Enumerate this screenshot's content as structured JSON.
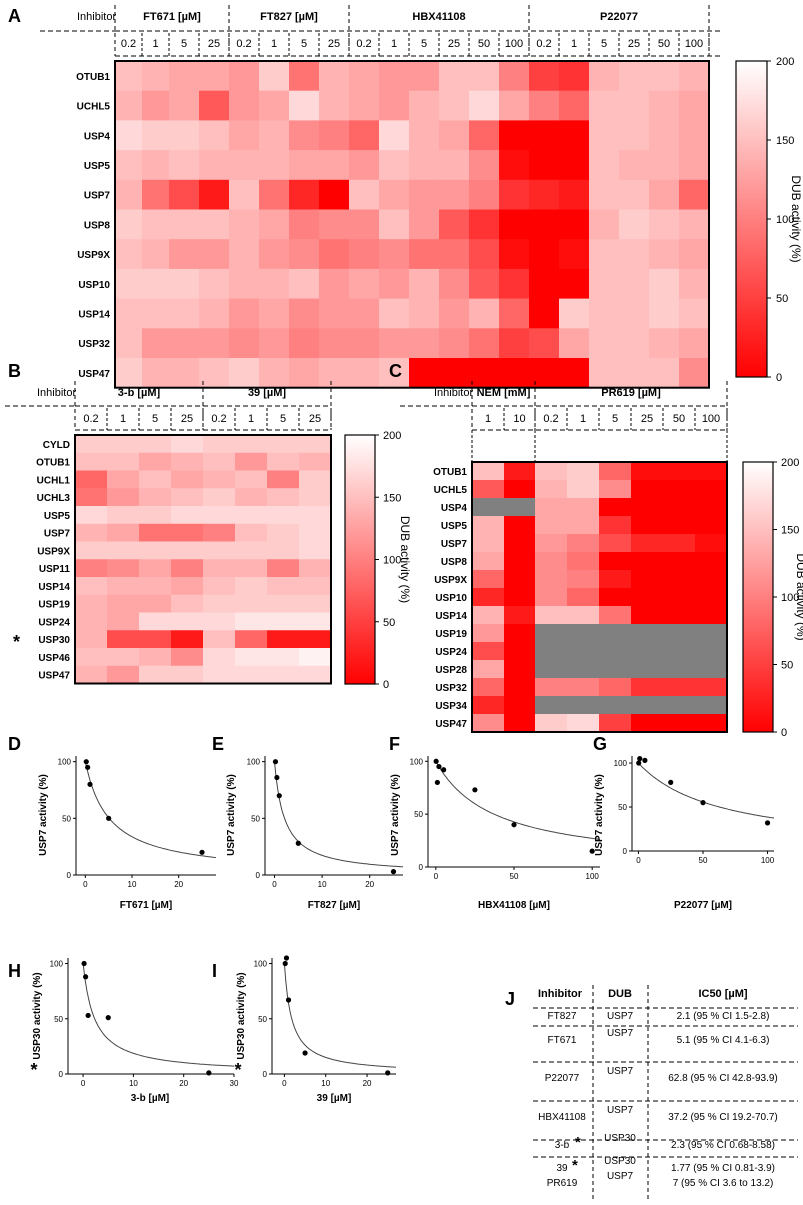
{
  "figure": {
    "title": "DUB inhibitor profiling figure"
  },
  "colorbar": {
    "label": "DUB activity (%)",
    "ticks": [
      0,
      50,
      100,
      150,
      200
    ]
  },
  "chart_data": [
    {
      "id": "A",
      "type": "heatmap",
      "panel": "A",
      "header_label": "Inhibitor",
      "groups": [
        {
          "name": "FT671 [µM]",
          "conc": [
            "0.2",
            "1",
            "5",
            "25"
          ]
        },
        {
          "name": "FT827 [µM]",
          "conc": [
            "0.2",
            "1",
            "5",
            "25"
          ]
        },
        {
          "name": "HBX41108",
          "conc": [
            "0.2",
            "1",
            "5",
            "25",
            "50",
            "100"
          ]
        },
        {
          "name": "P22077",
          "conc": [
            "0.2",
            "1",
            "5",
            "25",
            "50",
            "100"
          ]
        }
      ],
      "rows": [
        "OTUB1",
        "UCHL5",
        "USP4",
        "USP5",
        "USP7",
        "USP8",
        "USP9X",
        "USP10",
        "USP14",
        "USP32",
        "USP47"
      ],
      "values": [
        [
          150,
          140,
          130,
          130,
          120,
          160,
          90,
          140,
          130,
          120,
          120,
          150,
          150,
          100,
          50,
          40,
          140,
          150,
          150,
          140,
          130,
          160
        ],
        [
          140,
          120,
          130,
          70,
          120,
          130,
          170,
          140,
          130,
          120,
          140,
          150,
          170,
          130,
          100,
          80,
          150,
          150,
          140,
          130,
          120,
          130
        ],
        [
          170,
          160,
          160,
          150,
          130,
          140,
          110,
          100,
          80,
          170,
          140,
          130,
          80,
          0,
          0,
          0,
          150,
          150,
          140,
          130,
          130,
          130
        ],
        [
          150,
          140,
          150,
          140,
          140,
          140,
          130,
          130,
          120,
          150,
          140,
          140,
          110,
          10,
          0,
          0,
          150,
          140,
          140,
          130,
          130,
          130
        ],
        [
          140,
          90,
          60,
          20,
          150,
          90,
          30,
          0,
          150,
          130,
          120,
          120,
          100,
          40,
          30,
          20,
          150,
          150,
          130,
          80,
          50,
          30
        ],
        [
          160,
          150,
          150,
          150,
          140,
          130,
          100,
          110,
          110,
          150,
          120,
          70,
          40,
          0,
          0,
          0,
          140,
          160,
          150,
          140,
          140,
          130
        ],
        [
          150,
          140,
          120,
          120,
          140,
          120,
          110,
          90,
          100,
          110,
          90,
          90,
          60,
          10,
          0,
          10,
          150,
          150,
          140,
          130,
          130,
          120
        ],
        [
          160,
          160,
          160,
          150,
          140,
          140,
          150,
          120,
          130,
          120,
          140,
          110,
          70,
          40,
          0,
          0,
          150,
          150,
          160,
          140,
          140,
          130
        ],
        [
          150,
          150,
          150,
          140,
          120,
          130,
          110,
          120,
          120,
          150,
          140,
          120,
          140,
          80,
          0,
          160,
          150,
          150,
          160,
          150,
          140,
          130
        ],
        [
          150,
          120,
          120,
          120,
          110,
          120,
          100,
          110,
          110,
          120,
          120,
          110,
          90,
          50,
          60,
          130,
          150,
          150,
          140,
          130,
          110,
          100
        ],
        [
          160,
          140,
          140,
          150,
          160,
          140,
          130,
          140,
          140,
          150,
          0,
          0,
          0,
          0,
          0,
          0,
          150,
          150,
          150,
          110,
          80,
          0
        ]
      ]
    },
    {
      "id": "B",
      "type": "heatmap",
      "panel": "B",
      "header_label": "Inhibitor",
      "groups": [
        {
          "name": "3-b [µM]",
          "conc": [
            "0.2",
            "1",
            "5",
            "25"
          ]
        },
        {
          "name": "39 [µM]",
          "conc": [
            "0.2",
            "1",
            "5",
            "25"
          ]
        }
      ],
      "rows": [
        "CYLD",
        "OTUB1",
        "UCHL1",
        "UCHL3",
        "USP5",
        "USP7",
        "USP9X",
        "USP11",
        "USP14",
        "USP19",
        "USP24",
        "USP30",
        "USP46",
        "USP47"
      ],
      "marked_rows": [
        "USP30"
      ],
      "values": [
        [
          160,
          160,
          160,
          170,
          160,
          160,
          160,
          160
        ],
        [
          150,
          150,
          130,
          140,
          150,
          120,
          150,
          140
        ],
        [
          80,
          130,
          150,
          130,
          140,
          150,
          100,
          160
        ],
        [
          90,
          120,
          140,
          150,
          160,
          140,
          150,
          160
        ],
        [
          170,
          160,
          160,
          170,
          170,
          170,
          170,
          170
        ],
        [
          140,
          130,
          90,
          90,
          100,
          150,
          160,
          170
        ],
        [
          160,
          160,
          160,
          160,
          160,
          160,
          160,
          170
        ],
        [
          100,
          110,
          130,
          100,
          140,
          140,
          100,
          140
        ],
        [
          150,
          140,
          140,
          130,
          150,
          160,
          150,
          150
        ],
        [
          140,
          130,
          130,
          150,
          160,
          160,
          160,
          160
        ],
        [
          140,
          130,
          170,
          170,
          170,
          180,
          180,
          180
        ],
        [
          140,
          60,
          60,
          20,
          150,
          80,
          20,
          20
        ],
        [
          150,
          150,
          140,
          110,
          170,
          180,
          180,
          190
        ],
        [
          140,
          120,
          160,
          160,
          170,
          170,
          170,
          170
        ]
      ]
    },
    {
      "id": "C",
      "type": "heatmap",
      "panel": "C",
      "header_label": "Inhibitor",
      "groups": [
        {
          "name": "NEM [mM]",
          "conc": [
            "1",
            "10"
          ]
        },
        {
          "name": "PR619 [µM]",
          "conc": [
            "0.2",
            "1",
            "5",
            "25",
            "50",
            "100"
          ]
        }
      ],
      "rows": [
        "OTUB1",
        "UCHL5",
        "USP4",
        "USP5",
        "USP7",
        "USP8",
        "USP9X",
        "USP10",
        "USP14",
        "USP19",
        "USP24",
        "USP28",
        "USP32",
        "USP34",
        "USP47"
      ],
      "values": [
        [
          150,
          20,
          150,
          160,
          80,
          10,
          10,
          10
        ],
        [
          70,
          0,
          140,
          160,
          110,
          0,
          0,
          0
        ],
        [
          null,
          null,
          130,
          130,
          0,
          0,
          0,
          0
        ],
        [
          140,
          0,
          130,
          130,
          40,
          0,
          0,
          0
        ],
        [
          140,
          0,
          120,
          100,
          60,
          30,
          30,
          10
        ],
        [
          130,
          0,
          110,
          90,
          0,
          0,
          0,
          0
        ],
        [
          80,
          0,
          110,
          100,
          20,
          0,
          0,
          0
        ],
        [
          30,
          0,
          110,
          80,
          0,
          0,
          0,
          0
        ],
        [
          140,
          20,
          150,
          150,
          90,
          0,
          0,
          0
        ],
        [
          120,
          0,
          null,
          null,
          null,
          null,
          null,
          null
        ],
        [
          60,
          0,
          null,
          null,
          null,
          null,
          null,
          null
        ],
        [
          130,
          0,
          null,
          null,
          null,
          null,
          null,
          null
        ],
        [
          80,
          0,
          100,
          100,
          80,
          40,
          40,
          40
        ],
        [
          30,
          0,
          null,
          null,
          null,
          null,
          null,
          null
        ],
        [
          110,
          0,
          160,
          170,
          50,
          0,
          0,
          0
        ]
      ]
    },
    {
      "id": "D",
      "type": "scatter",
      "panel": "D",
      "xlabel": "FT671 [µM]",
      "ylabel": "USP7 activity (%)",
      "x_ticks": [
        0,
        10,
        20
      ],
      "y_ticks": [
        0,
        50,
        100
      ],
      "xlim": [
        -2,
        28
      ],
      "ylim": [
        0,
        105
      ],
      "ic50": 5.1,
      "points": [
        {
          "x": 0.2,
          "y": 100
        },
        {
          "x": 0.5,
          "y": 95
        },
        {
          "x": 1,
          "y": 80
        },
        {
          "x": 5,
          "y": 50
        },
        {
          "x": 25,
          "y": 20
        }
      ]
    },
    {
      "id": "E",
      "type": "scatter",
      "panel": "E",
      "xlabel": "FT827 [µM]",
      "ylabel": "USP7 activity (%)",
      "x_ticks": [
        0,
        10,
        20
      ],
      "y_ticks": [
        0,
        50,
        100
      ],
      "xlim": [
        -2,
        27
      ],
      "ylim": [
        0,
        105
      ],
      "ic50": 2.1,
      "points": [
        {
          "x": 0.2,
          "y": 100
        },
        {
          "x": 0.5,
          "y": 86
        },
        {
          "x": 1,
          "y": 70
        },
        {
          "x": 5,
          "y": 28
        },
        {
          "x": 25,
          "y": 3
        }
      ]
    },
    {
      "id": "F",
      "type": "scatter",
      "panel": "F",
      "xlabel": "HBX41108 [µM]",
      "ylabel": "USP7 activity (%)",
      "x_ticks": [
        0,
        50,
        100
      ],
      "y_ticks": [
        0,
        50,
        100
      ],
      "xlim": [
        -5,
        105
      ],
      "ylim": [
        0,
        105
      ],
      "ic50": 37.2,
      "points": [
        {
          "x": 0.2,
          "y": 100
        },
        {
          "x": 1,
          "y": 80
        },
        {
          "x": 2,
          "y": 95
        },
        {
          "x": 5,
          "y": 92
        },
        {
          "x": 25,
          "y": 73
        },
        {
          "x": 50,
          "y": 40
        },
        {
          "x": 100,
          "y": 15
        }
      ]
    },
    {
      "id": "G",
      "type": "scatter",
      "panel": "G",
      "xlabel": "P22077 [µM]",
      "ylabel": "USP7 activity (%)",
      "x_ticks": [
        0,
        50,
        100
      ],
      "y_ticks": [
        0,
        50,
        100
      ],
      "xlim": [
        -5,
        105
      ],
      "ylim": [
        0,
        108
      ],
      "ic50": 62.8,
      "points": [
        {
          "x": 0.2,
          "y": 100
        },
        {
          "x": 1,
          "y": 105
        },
        {
          "x": 5,
          "y": 103
        },
        {
          "x": 25,
          "y": 78
        },
        {
          "x": 50,
          "y": 55
        },
        {
          "x": 100,
          "y": 32
        }
      ]
    },
    {
      "id": "H",
      "type": "scatter",
      "panel": "H",
      "xlabel": "3-b [µM]",
      "ylabel": "USP30 activity (%)",
      "x_ticks": [
        0,
        10,
        20,
        30
      ],
      "y_ticks": [
        0,
        50,
        100
      ],
      "xlim": [
        -3,
        30
      ],
      "ylim": [
        0,
        105
      ],
      "ic50": 2.3,
      "points": [
        {
          "x": 0.2,
          "y": 100
        },
        {
          "x": 0.5,
          "y": 88
        },
        {
          "x": 1,
          "y": 53
        },
        {
          "x": 5,
          "y": 51
        },
        {
          "x": 25,
          "y": 1
        }
      ]
    },
    {
      "id": "I",
      "type": "scatter",
      "panel": "I",
      "xlabel": "39 [µM]",
      "ylabel": "USP30 activity (%)",
      "x_ticks": [
        0,
        10,
        20
      ],
      "y_ticks": [
        0,
        50,
        100
      ],
      "xlim": [
        -3,
        27
      ],
      "ylim": [
        0,
        105
      ],
      "ic50": 1.77,
      "points": [
        {
          "x": 0.2,
          "y": 100
        },
        {
          "x": 0.5,
          "y": 105
        },
        {
          "x": 1,
          "y": 67
        },
        {
          "x": 5,
          "y": 19
        },
        {
          "x": 25,
          "y": 1
        }
      ]
    }
  ],
  "table": {
    "panel": "J",
    "headers": [
      "Inhibitor",
      "DUB",
      "IC50 [µM]"
    ],
    "rows": [
      [
        "FT827",
        "USP7",
        "2.1 (95 % CI 1.5-2.8)"
      ],
      [
        "FT671",
        "USP7",
        "5.1 (95 % CI 4.1-6.3)"
      ],
      [
        "P22077",
        "USP7",
        "62.8 (95 % CI 42.8-93.9)"
      ],
      [
        "HBX41108",
        "USP7",
        "37.2 (95 % CI 19.2-70.7)"
      ],
      [
        "3-b",
        "USP30",
        "2.3 (95 % CI 0.68-8.58)"
      ],
      [
        "39",
        "USP30",
        "1.77  (95 % CI 0.81-3.9)"
      ],
      [
        "PR619",
        "USP7",
        "7 (95 % CI 3.6 to 13.2)"
      ]
    ],
    "asterisk_rows": [
      "3-b",
      "39"
    ]
  },
  "asterisk": "*",
  "colors": {
    "low": "#ff0000",
    "high": "#ffffff",
    "missing": "#808080"
  }
}
